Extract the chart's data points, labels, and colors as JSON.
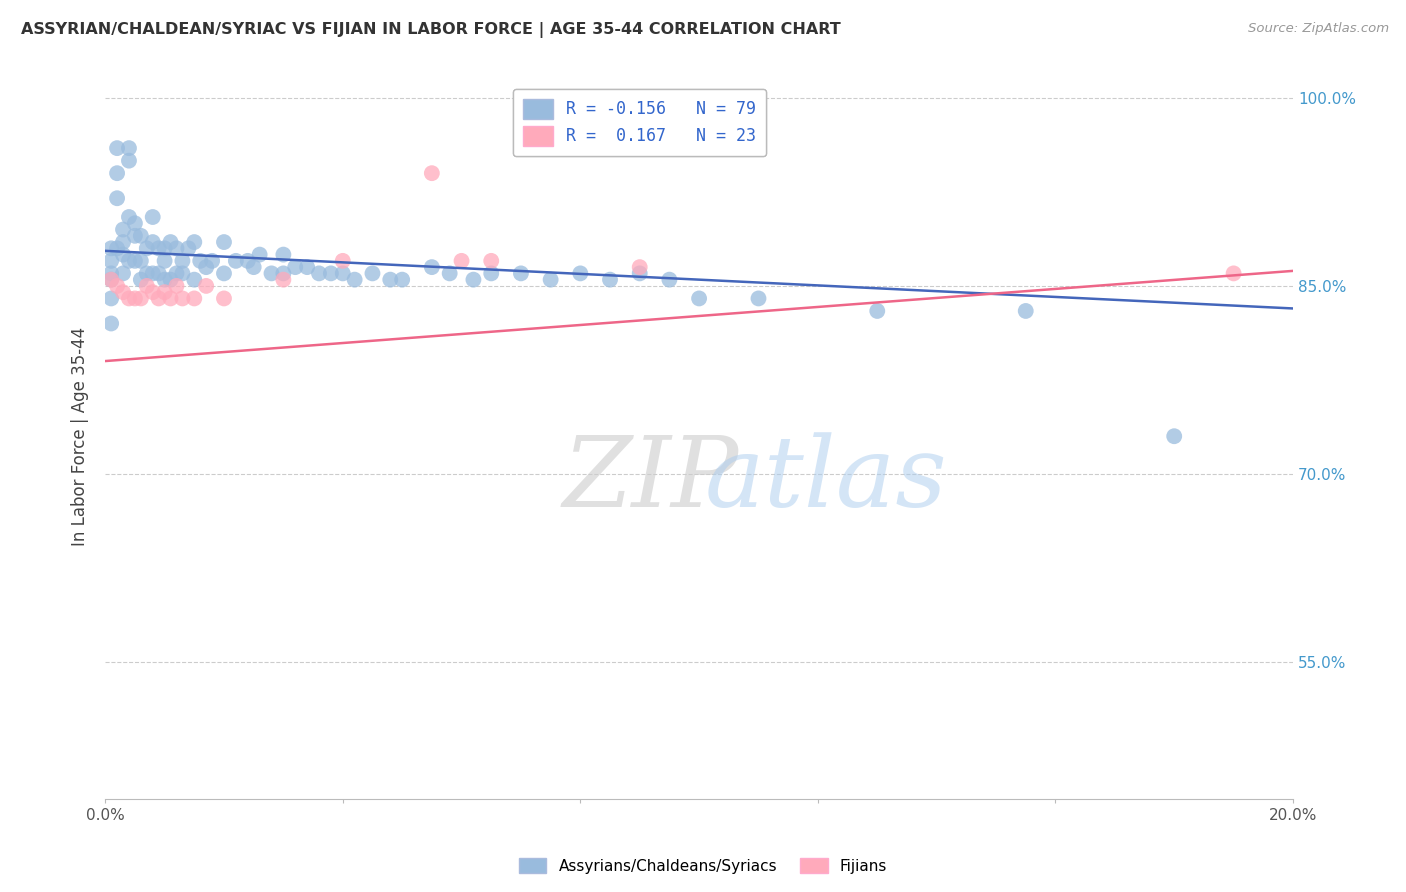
{
  "title": "ASSYRIAN/CHALDEAN/SYRIAC VS FIJIAN IN LABOR FORCE | AGE 35-44 CORRELATION CHART",
  "source": "Source: ZipAtlas.com",
  "ylabel": "In Labor Force | Age 35-44",
  "x_min": 0.0,
  "x_max": 0.2,
  "y_min": 0.44,
  "y_max": 1.02,
  "y_ticks": [
    0.55,
    0.7,
    0.85,
    1.0
  ],
  "y_tick_labels": [
    "55.0%",
    "70.0%",
    "85.0%",
    "100.0%"
  ],
  "blue_color": "#99BBDD",
  "pink_color": "#FFAABB",
  "blue_line_color": "#4466BB",
  "pink_line_color": "#EE6688",
  "legend_R_label1": "R = -0.156   N = 79",
  "legend_R_label2": "R =  0.167   N = 23",
  "legend_label1": "Assyrians/Chaldeans/Syriacs",
  "legend_label2": "Fijians",
  "grid_color": "#CCCCCC",
  "blue_line_x0": 0.0,
  "blue_line_y0": 0.878,
  "blue_line_x1": 0.2,
  "blue_line_y1": 0.832,
  "pink_line_x0": 0.0,
  "pink_line_x1": 0.2,
  "pink_line_y0": 0.79,
  "pink_line_y1": 0.862,
  "blue_x": [
    0.001,
    0.001,
    0.001,
    0.001,
    0.001,
    0.002,
    0.002,
    0.002,
    0.002,
    0.003,
    0.003,
    0.003,
    0.003,
    0.004,
    0.004,
    0.004,
    0.004,
    0.005,
    0.005,
    0.005,
    0.006,
    0.006,
    0.006,
    0.007,
    0.007,
    0.008,
    0.008,
    0.008,
    0.009,
    0.009,
    0.01,
    0.01,
    0.01,
    0.011,
    0.011,
    0.012,
    0.012,
    0.013,
    0.013,
    0.014,
    0.015,
    0.015,
    0.016,
    0.017,
    0.018,
    0.02,
    0.02,
    0.022,
    0.024,
    0.025,
    0.026,
    0.028,
    0.03,
    0.03,
    0.032,
    0.034,
    0.036,
    0.038,
    0.04,
    0.042,
    0.045,
    0.048,
    0.05,
    0.055,
    0.058,
    0.062,
    0.065,
    0.07,
    0.075,
    0.08,
    0.085,
    0.09,
    0.095,
    0.1,
    0.11,
    0.13,
    0.155,
    0.18,
    0.001
  ],
  "blue_y": [
    0.88,
    0.87,
    0.86,
    0.855,
    0.84,
    0.96,
    0.94,
    0.92,
    0.88,
    0.895,
    0.885,
    0.875,
    0.86,
    0.96,
    0.95,
    0.905,
    0.87,
    0.9,
    0.89,
    0.87,
    0.89,
    0.87,
    0.855,
    0.88,
    0.86,
    0.905,
    0.885,
    0.86,
    0.88,
    0.86,
    0.88,
    0.87,
    0.855,
    0.885,
    0.855,
    0.88,
    0.86,
    0.87,
    0.86,
    0.88,
    0.885,
    0.855,
    0.87,
    0.865,
    0.87,
    0.885,
    0.86,
    0.87,
    0.87,
    0.865,
    0.875,
    0.86,
    0.875,
    0.86,
    0.865,
    0.865,
    0.86,
    0.86,
    0.86,
    0.855,
    0.86,
    0.855,
    0.855,
    0.865,
    0.86,
    0.855,
    0.86,
    0.86,
    0.855,
    0.86,
    0.855,
    0.86,
    0.855,
    0.84,
    0.84,
    0.83,
    0.83,
    0.73,
    0.82
  ],
  "pink_x": [
    0.001,
    0.002,
    0.003,
    0.004,
    0.005,
    0.006,
    0.007,
    0.008,
    0.009,
    0.01,
    0.011,
    0.012,
    0.013,
    0.015,
    0.017,
    0.02,
    0.03,
    0.04,
    0.055,
    0.06,
    0.065,
    0.09,
    0.19
  ],
  "pink_y": [
    0.855,
    0.85,
    0.845,
    0.84,
    0.84,
    0.84,
    0.85,
    0.845,
    0.84,
    0.845,
    0.84,
    0.85,
    0.84,
    0.84,
    0.85,
    0.84,
    0.855,
    0.87,
    0.94,
    0.87,
    0.87,
    0.865,
    0.86
  ]
}
